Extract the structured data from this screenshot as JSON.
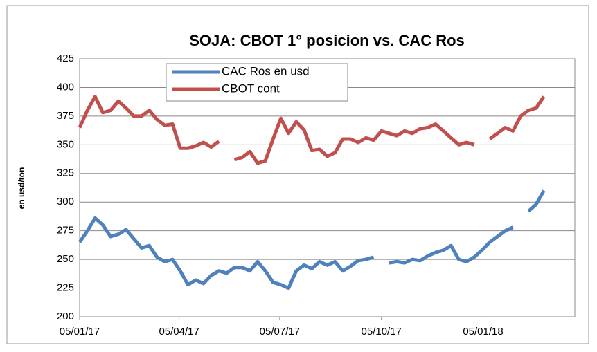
{
  "chart_data": {
    "type": "line",
    "title": "SOJA: CBOT 1° posicion vs. CAC Ros",
    "y_label": "en usd/ton",
    "x": [
      "05/01/17",
      "12/01/17",
      "19/01/17",
      "26/01/17",
      "02/02/17",
      "09/02/17",
      "16/02/17",
      "23/02/17",
      "02/03/17",
      "09/03/17",
      "16/03/17",
      "23/03/17",
      "30/03/17",
      "06/04/17",
      "13/04/17",
      "20/04/17",
      "27/04/17",
      "04/05/17",
      "11/05/17",
      "18/05/17",
      "25/05/17",
      "01/06/17",
      "08/06/17",
      "15/06/17",
      "22/06/17",
      "29/06/17",
      "06/07/17",
      "13/07/17",
      "20/07/17",
      "27/07/17",
      "03/08/17",
      "10/08/17",
      "17/08/17",
      "24/08/17",
      "31/08/17",
      "07/09/17",
      "14/09/17",
      "21/09/17",
      "28/09/17",
      "05/10/17",
      "12/10/17",
      "19/10/17",
      "26/10/17",
      "02/11/17",
      "09/11/17",
      "16/11/17",
      "23/11/17",
      "30/11/17",
      "07/12/17",
      "14/12/17",
      "21/12/17",
      "28/12/17",
      "04/01/18",
      "11/01/18",
      "18/01/18",
      "25/01/18",
      "01/02/18",
      "08/02/18",
      "15/02/18",
      "22/02/18",
      "01/03/18"
    ],
    "series": [
      {
        "name": "CAC Ros en usd",
        "color": "#4f81bd",
        "values": [
          265,
          275,
          286,
          280,
          270,
          272,
          276,
          268,
          260,
          262,
          252,
          248,
          250,
          240,
          228,
          232,
          229,
          236,
          240,
          238,
          243,
          243,
          240,
          248,
          240,
          230,
          228,
          225,
          240,
          245,
          242,
          248,
          245,
          248,
          240,
          244,
          249,
          250,
          252,
          null,
          247,
          248,
          247,
          250,
          249,
          253,
          256,
          258,
          262,
          250,
          248,
          252,
          258,
          265,
          270,
          275,
          278,
          null,
          292,
          298,
          310
        ]
      },
      {
        "name": "CBOT cont",
        "color": "#c0504d",
        "values": [
          365,
          380,
          392,
          378,
          380,
          388,
          382,
          375,
          375,
          380,
          372,
          367,
          368,
          347,
          347,
          349,
          352,
          348,
          353,
          null,
          337,
          339,
          344,
          334,
          336,
          355,
          373,
          360,
          370,
          363,
          345,
          346,
          340,
          343,
          355,
          355,
          352,
          356,
          354,
          362,
          360,
          358,
          362,
          360,
          364,
          365,
          368,
          362,
          356,
          350,
          352,
          350,
          null,
          355,
          360,
          365,
          362,
          375,
          380,
          382,
          392
        ]
      }
    ],
    "xlim": [
      "05/01/17",
      "29/03/18"
    ],
    "xticks": [
      "05/01/17",
      "05/04/17",
      "05/07/17",
      "05/10/17",
      "05/01/18"
    ],
    "ylim": [
      200,
      425
    ],
    "yticks": [
      200,
      225,
      250,
      275,
      300,
      325,
      350,
      375,
      400,
      425
    ],
    "grid": true
  }
}
